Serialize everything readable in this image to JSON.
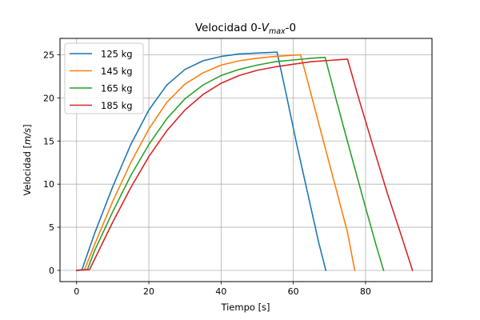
{
  "chart_data": {
    "type": "line",
    "title_main": "Velocidad 0-",
    "title_var": "V",
    "title_sub": "max",
    "title_end": "-0",
    "xlabel": "Tiempo [s]",
    "ylabel_pre": "Velocidad [",
    "ylabel_unit": "m/s",
    "ylabel_post": "]",
    "xlim": [
      -4.6,
      98.4
    ],
    "ylim": [
      -1.3,
      26.9
    ],
    "xticks": [
      0,
      20,
      40,
      60,
      80
    ],
    "yticks": [
      0,
      5,
      10,
      15,
      20,
      25
    ],
    "grid": true,
    "legend_position": "top-left",
    "series": [
      {
        "name": "125 kg",
        "color": "#1f77b4",
        "x": [
          0,
          1.5,
          5,
          10,
          15,
          20,
          25,
          30,
          35,
          40,
          45,
          50,
          55.5,
          58,
          61,
          64,
          67,
          69
        ],
        "y": [
          0,
          0.1,
          4.3,
          9.7,
          14.6,
          18.6,
          21.5,
          23.3,
          24.3,
          24.8,
          25.1,
          25.2,
          25.3,
          20.5,
          14.5,
          8.9,
          3.3,
          0
        ]
      },
      {
        "name": "145 kg",
        "color": "#ff7f0e",
        "x": [
          0,
          2.2,
          5,
          10,
          15,
          20,
          25,
          30,
          35,
          40,
          45,
          50,
          55,
          62,
          64,
          68,
          72,
          75,
          77
        ],
        "y": [
          0,
          0.1,
          3.0,
          8.0,
          12.5,
          16.4,
          19.5,
          21.6,
          22.9,
          23.8,
          24.3,
          24.6,
          24.8,
          25.0,
          21.9,
          15.5,
          9.2,
          4.4,
          0
        ]
      },
      {
        "name": "165 kg",
        "color": "#2ca02c",
        "x": [
          0,
          3.0,
          5,
          10,
          15,
          20,
          25,
          30,
          35,
          40,
          45,
          50,
          55,
          60,
          65,
          68.8,
          72,
          76,
          80,
          83,
          85
        ],
        "y": [
          0,
          0.1,
          2.3,
          6.8,
          11.0,
          14.6,
          17.6,
          19.9,
          21.5,
          22.6,
          23.3,
          23.8,
          24.2,
          24.4,
          24.6,
          24.7,
          19.6,
          13.4,
          7.3,
          2.8,
          0
        ]
      },
      {
        "name": "185 kg",
        "color": "#d62728",
        "x": [
          0,
          3.6,
          5,
          10,
          15,
          20,
          25,
          30,
          35,
          40,
          45,
          50,
          55,
          60,
          65,
          70,
          75,
          78,
          82,
          86,
          90,
          93
        ],
        "y": [
          0,
          0.1,
          1.3,
          5.6,
          9.6,
          13.2,
          16.2,
          18.6,
          20.4,
          21.7,
          22.6,
          23.2,
          23.6,
          23.9,
          24.2,
          24.35,
          24.5,
          20.1,
          14.5,
          9.0,
          3.9,
          0
        ]
      }
    ]
  }
}
